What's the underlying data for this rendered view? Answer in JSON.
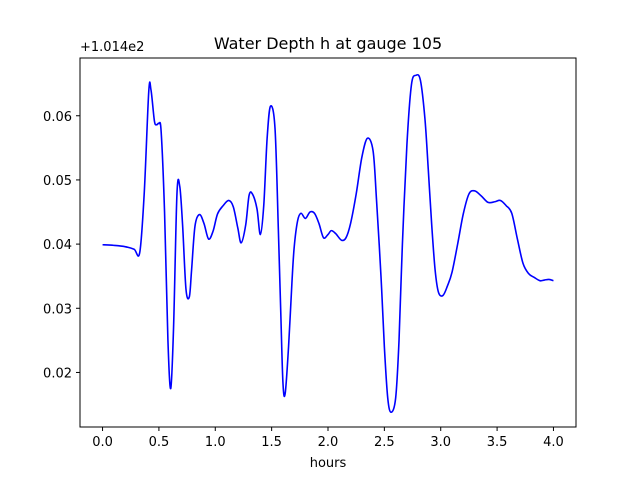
{
  "chart_data": {
    "type": "line",
    "title": "Water Depth h at gauge 105",
    "xlabel": "hours",
    "ylabel": "",
    "y_offset_label": "+1.014e2",
    "y_offset": 101.4,
    "xlim": [
      -0.2,
      4.2
    ],
    "ylim": [
      0.0115,
      0.069
    ],
    "xticks": [
      {
        "value": 0.0,
        "label": "0.0"
      },
      {
        "value": 0.5,
        "label": "0.5"
      },
      {
        "value": 1.0,
        "label": "1.0"
      },
      {
        "value": 1.5,
        "label": "1.5"
      },
      {
        "value": 2.0,
        "label": "2.0"
      },
      {
        "value": 2.5,
        "label": "2.5"
      },
      {
        "value": 3.0,
        "label": "3.0"
      },
      {
        "value": 3.5,
        "label": "3.5"
      },
      {
        "value": 4.0,
        "label": "4.0"
      }
    ],
    "yticks": [
      {
        "value": 0.02,
        "label": "0.02"
      },
      {
        "value": 0.03,
        "label": "0.03"
      },
      {
        "value": 0.04,
        "label": "0.04"
      },
      {
        "value": 0.05,
        "label": "0.05"
      },
      {
        "value": 0.06,
        "label": "0.06"
      }
    ],
    "grid": false,
    "series": [
      {
        "color": "#0000ff",
        "x": [
          0.0,
          0.1,
          0.2,
          0.28,
          0.33,
          0.37,
          0.41,
          0.43,
          0.46,
          0.48,
          0.5,
          0.52,
          0.55,
          0.58,
          0.605,
          0.63,
          0.66,
          0.685,
          0.71,
          0.74,
          0.77,
          0.79,
          0.82,
          0.86,
          0.9,
          0.94,
          0.98,
          1.02,
          1.07,
          1.12,
          1.16,
          1.2,
          1.23,
          1.27,
          1.3,
          1.33,
          1.37,
          1.4,
          1.43,
          1.46,
          1.49,
          1.53,
          1.56,
          1.58,
          1.6,
          1.62,
          1.65,
          1.68,
          1.7,
          1.73,
          1.76,
          1.8,
          1.84,
          1.88,
          1.92,
          1.96,
          2.0,
          2.03,
          2.07,
          2.12,
          2.16,
          2.2,
          2.25,
          2.3,
          2.35,
          2.4,
          2.43,
          2.47,
          2.5,
          2.53,
          2.56,
          2.6,
          2.63,
          2.66,
          2.7,
          2.74,
          2.78,
          2.82,
          2.86,
          2.89,
          2.92,
          2.95,
          2.98,
          3.02,
          3.06,
          3.1,
          3.15,
          3.2,
          3.25,
          3.3,
          3.36,
          3.42,
          3.48,
          3.53,
          3.58,
          3.63,
          3.68,
          3.73,
          3.78,
          3.83,
          3.88,
          3.92,
          3.96,
          4.0
        ],
        "y": [
          0.0399,
          0.0398,
          0.0396,
          0.0392,
          0.0387,
          0.048,
          0.0638,
          0.064,
          0.0592,
          0.0586,
          0.0588,
          0.0575,
          0.045,
          0.025,
          0.0175,
          0.027,
          0.0478,
          0.049,
          0.043,
          0.033,
          0.0318,
          0.036,
          0.0428,
          0.0446,
          0.0432,
          0.0408,
          0.042,
          0.0447,
          0.046,
          0.0468,
          0.0458,
          0.0425,
          0.0402,
          0.043,
          0.0476,
          0.0478,
          0.0455,
          0.0415,
          0.046,
          0.0565,
          0.0615,
          0.058,
          0.042,
          0.03,
          0.0185,
          0.0167,
          0.024,
          0.034,
          0.0395,
          0.0436,
          0.0448,
          0.044,
          0.045,
          0.0448,
          0.0432,
          0.041,
          0.0415,
          0.0421,
          0.0416,
          0.0406,
          0.041,
          0.0432,
          0.0478,
          0.0535,
          0.0565,
          0.0545,
          0.047,
          0.035,
          0.024,
          0.016,
          0.0138,
          0.016,
          0.025,
          0.04,
          0.0555,
          0.0648,
          0.0663,
          0.0655,
          0.0595,
          0.0515,
          0.043,
          0.036,
          0.0325,
          0.032,
          0.0335,
          0.0356,
          0.04,
          0.0447,
          0.0478,
          0.0483,
          0.0475,
          0.0465,
          0.0466,
          0.0468,
          0.046,
          0.0448,
          0.0408,
          0.037,
          0.0354,
          0.0348,
          0.0343,
          0.0344,
          0.0345,
          0.0343
        ]
      }
    ]
  }
}
